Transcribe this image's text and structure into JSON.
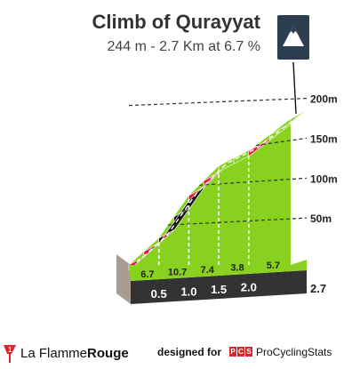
{
  "header": {
    "title": "Climb of Qurayyat",
    "subtitle": "244 m - 2.7 Km at 6.7 %"
  },
  "chart_data": {
    "type": "area",
    "title": "Climb of Qurayyat",
    "subtitle": "244 m - 2.7 Km at 6.7 %",
    "x": [
      0,
      0.5,
      1.0,
      1.5,
      2.0,
      2.7
    ],
    "elevation": [
      0,
      33.5,
      87,
      124,
      143,
      183
    ],
    "segment_gradients": [
      6.7,
      10.7,
      7.4,
      3.8,
      5.7
    ],
    "segment_colors": [
      "#e3173e",
      "#111111",
      "#e3173e",
      "#88d21f",
      "#e3173e",
      "#88d21f"
    ],
    "distance_ticks": [
      "0.5",
      "1.0",
      "1.5",
      "2.0"
    ],
    "final_distance": "2.7",
    "altitude_ticks": [
      {
        "value": 50,
        "label": "50m"
      },
      {
        "value": 100,
        "label": "100m"
      },
      {
        "value": 150,
        "label": "150m"
      },
      {
        "value": 200,
        "label": "200m"
      }
    ],
    "ylim": [
      0,
      200
    ],
    "xlim": [
      0,
      2.7
    ]
  },
  "footer": {
    "lfr_prefix": "La Flamme",
    "lfr_suffix": "Rouge",
    "lfr_badge": "1",
    "designed_for": "designed for",
    "pcs_letters": [
      "P",
      "C",
      "S"
    ],
    "pcs_name": "ProCyclingStats"
  },
  "icons": {
    "summit": "mountain-summit-icon"
  },
  "colors": {
    "green": "#88d21f",
    "red": "#e3173e",
    "black": "#111111",
    "base": "#333333",
    "side": "#a89d92",
    "badge": "#2c3e50"
  }
}
